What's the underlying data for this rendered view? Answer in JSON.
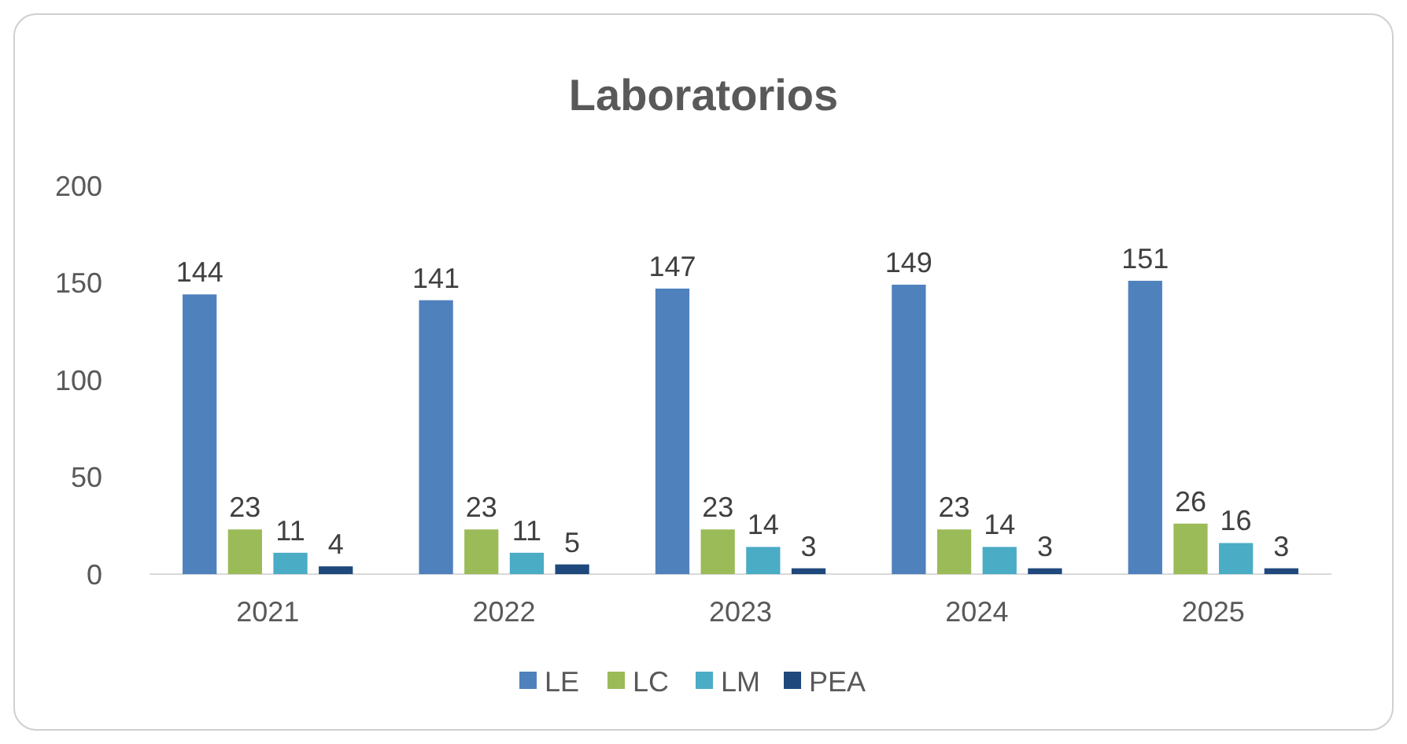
{
  "chart_data": {
    "type": "bar",
    "title": "Laboratorios",
    "categories": [
      "2021",
      "2022",
      "2023",
      "2024",
      "2025"
    ],
    "series": [
      {
        "name": "LE",
        "color": "#4f81bd",
        "values": [
          144,
          141,
          147,
          149,
          151
        ]
      },
      {
        "name": "LC",
        "color": "#9bbb59",
        "values": [
          23,
          23,
          23,
          23,
          26
        ]
      },
      {
        "name": "LM",
        "color": "#4bacc6",
        "values": [
          11,
          11,
          14,
          14,
          16
        ]
      },
      {
        "name": "PEA",
        "color": "#1f497d",
        "values": [
          4,
          5,
          3,
          3,
          3
        ]
      }
    ],
    "ylim": [
      0,
      200
    ],
    "yticks": [
      0,
      50,
      100,
      150,
      200
    ],
    "grid": false,
    "legend": "bottom",
    "data_labels": true
  }
}
